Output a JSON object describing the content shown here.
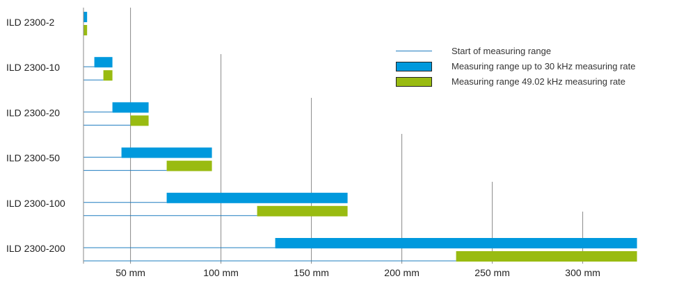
{
  "chart_data": {
    "type": "bar",
    "title": "",
    "xlabel": "",
    "ylabel": "",
    "x_range": [
      0,
      330
    ],
    "x_ticks": [
      {
        "value": 50,
        "label": "50 mm"
      },
      {
        "value": 100,
        "label": "100 mm"
      },
      {
        "value": 150,
        "label": "150 mm"
      },
      {
        "value": 200,
        "label": "200 mm"
      },
      {
        "value": 250,
        "label": "250 mm"
      },
      {
        "value": 300,
        "label": "300 mm"
      }
    ],
    "grid": "vertical lines of varying height above each tick",
    "categories": [
      "ILD 2300-2",
      "ILD 2300-10",
      "ILD 2300-20",
      "ILD 2300-50",
      "ILD 2300-100",
      "ILD 2300-200"
    ],
    "series": [
      {
        "name": "Measuring range up to 30 kHz measuring rate",
        "color": "#0099dd",
        "ranges": [
          [
            24,
            26
          ],
          [
            30,
            40
          ],
          [
            40,
            60
          ],
          [
            45,
            95
          ],
          [
            70,
            170
          ],
          [
            130,
            330
          ]
        ]
      },
      {
        "name": "Measuring range 49.02 kHz measuring rate",
        "color": "#99bb11",
        "ranges": [
          [
            24,
            26
          ],
          [
            35,
            40
          ],
          [
            50,
            60
          ],
          [
            70,
            95
          ],
          [
            120,
            170
          ],
          [
            230,
            330
          ]
        ]
      }
    ],
    "start_line": {
      "name": "Start of measuring range",
      "color": "#1e7cbf"
    },
    "legend": {
      "position": "top-right",
      "items": [
        {
          "kind": "line",
          "label": "Start of measuring range",
          "color": "#1e7cbf"
        },
        {
          "kind": "swatch",
          "label": "Measuring range up to 30 kHz measuring rate",
          "color": "#0099dd"
        },
        {
          "kind": "swatch",
          "label": "Measuring range 49.02 kHz measuring rate",
          "color": "#99bb11"
        }
      ]
    }
  }
}
